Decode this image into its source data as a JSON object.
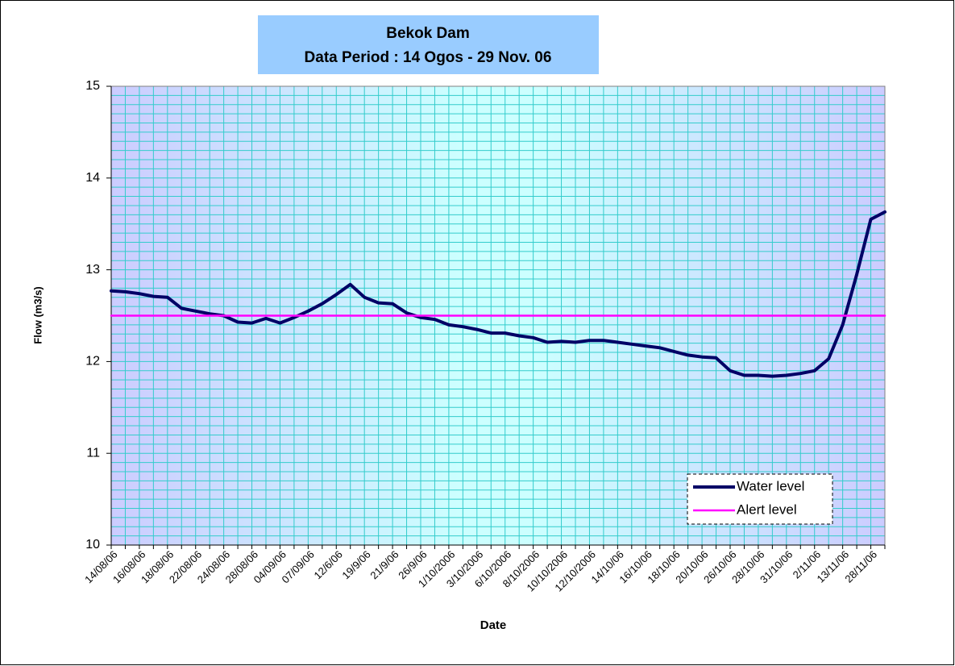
{
  "chart_data": {
    "type": "line",
    "title": "Bekok Dam",
    "subtitle": "Data Period : 14 Ogos - 29 Nov. 06",
    "x_label": "Date",
    "y_label": "Flow (m3/s)",
    "categories": [
      "14/08/06",
      null,
      "16/08/06",
      null,
      "18/08/06",
      null,
      "22/08/06",
      null,
      "24/08/06",
      null,
      "28/08/06",
      null,
      "04/09/06",
      null,
      "07/09/06",
      null,
      "12/6/06",
      null,
      "19/9/06",
      null,
      "21/9/06",
      null,
      "26/9/06",
      null,
      "1/10/2006",
      null,
      "3/10/2006",
      null,
      "6/10/2006",
      null,
      "8/10/2006",
      null,
      "10/10/2006",
      null,
      "12/10/2006",
      null,
      "14/10/06",
      null,
      "16/10/06",
      null,
      "18/10/06",
      null,
      "20/10/06",
      null,
      "26/10/06",
      null,
      "28/10/06",
      null,
      "31/10/06",
      null,
      "2/11/06",
      null,
      "13/11/06",
      null,
      "28/11/06",
      null
    ],
    "series": [
      {
        "name": "Water level",
        "color": "#000066",
        "values": [
          12.77,
          12.76,
          12.74,
          12.71,
          12.7,
          12.58,
          12.55,
          12.52,
          12.5,
          12.43,
          12.42,
          12.47,
          12.42,
          12.48,
          12.55,
          12.63,
          12.73,
          12.84,
          12.7,
          12.64,
          12.63,
          12.53,
          12.48,
          12.46,
          12.4,
          12.38,
          12.35,
          12.31,
          12.31,
          12.28,
          12.26,
          12.21,
          12.22,
          12.21,
          12.23,
          12.23,
          12.21,
          12.19,
          12.17,
          12.15,
          12.11,
          12.07,
          12.05,
          12.04,
          11.9,
          11.85,
          11.85,
          11.84,
          11.85,
          11.87,
          11.9,
          12.03,
          12.4,
          12.95,
          13.55,
          13.63
        ]
      },
      {
        "name": "Alert level",
        "color": "#ff00ff",
        "values": [
          12.5,
          12.5,
          12.5,
          12.5,
          12.5,
          12.5,
          12.5,
          12.5,
          12.5,
          12.5,
          12.5,
          12.5,
          12.5,
          12.5,
          12.5,
          12.5,
          12.5,
          12.5,
          12.5,
          12.5,
          12.5,
          12.5,
          12.5,
          12.5,
          12.5,
          12.5,
          12.5,
          12.5,
          12.5,
          12.5,
          12.5,
          12.5,
          12.5,
          12.5,
          12.5,
          12.5,
          12.5,
          12.5,
          12.5,
          12.5,
          12.5,
          12.5,
          12.5,
          12.5,
          12.5,
          12.5,
          12.5,
          12.5,
          12.5,
          12.5,
          12.5,
          12.5,
          12.5,
          12.5,
          12.5,
          12.5
        ]
      }
    ],
    "ylim": [
      10,
      15
    ],
    "yticks": [
      10,
      11,
      12,
      13,
      14,
      15
    ],
    "minor_grid_step": 0.1,
    "grid": true,
    "legend": "lower right"
  }
}
